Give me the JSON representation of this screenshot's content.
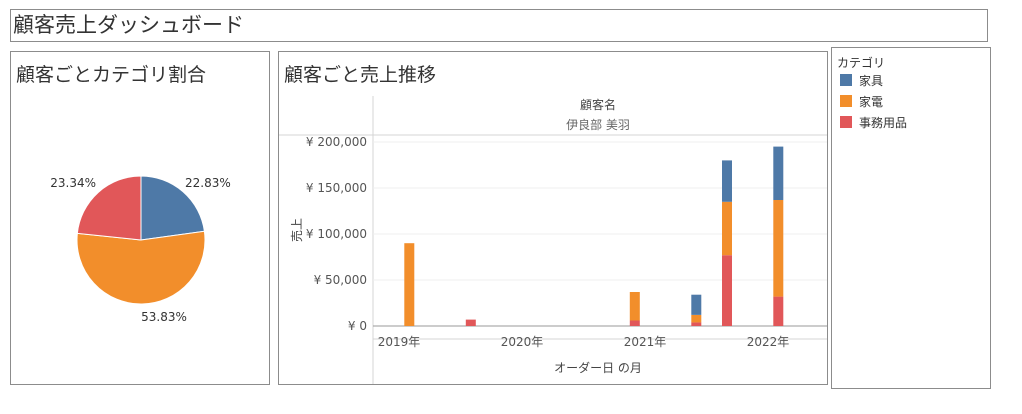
{
  "dashboard": {
    "title": "顧客売上ダッシュボード"
  },
  "pie_panel": {
    "title": "顧客ごとカテゴリ割合"
  },
  "trend_panel": {
    "title": "顧客ごと売上推移"
  },
  "legend": {
    "title": "カテゴリ",
    "items": [
      {
        "label": "家具",
        "color": "#4e79a7"
      },
      {
        "label": "家電",
        "color": "#f28e2b"
      },
      {
        "label": "事務用品",
        "color": "#e15759"
      }
    ]
  },
  "chart_data": [
    {
      "type": "pie",
      "categories": [
        "家具",
        "家電",
        "事務用品"
      ],
      "values": [
        22.83,
        53.83,
        23.34
      ],
      "labels": [
        "22.83%",
        "53.83%",
        "23.34%"
      ],
      "colors": [
        "#4e79a7",
        "#f28e2b",
        "#e15759"
      ]
    },
    {
      "type": "bar",
      "stacked": true,
      "header_title": "顧客名",
      "header_value": "伊良部 美羽",
      "xlabel": "オーダー日 の月",
      "ylabel": "売上",
      "x_tick_labels": [
        "2019年",
        "2020年",
        "2021年",
        "2022年"
      ],
      "y_tick_labels": [
        "¥ 0",
        "¥ 50,000",
        "¥ 100,000",
        "¥ 150,000",
        "¥ 200,000"
      ],
      "ylim": [
        0,
        200000
      ],
      "xlim": [
        "2019-01",
        "2022-05"
      ],
      "x": [
        "2019-02",
        "2019-08",
        "2020-12",
        "2021-06",
        "2021-09",
        "2022-02"
      ],
      "series": [
        {
          "name": "事務用品",
          "color": "#e15759",
          "values": [
            0,
            7000,
            6000,
            4000,
            77000,
            32000
          ]
        },
        {
          "name": "家電",
          "color": "#f28e2b",
          "values": [
            90000,
            0,
            31000,
            8000,
            58000,
            105000
          ]
        },
        {
          "name": "家具",
          "color": "#4e79a7",
          "values": [
            0,
            0,
            0,
            22000,
            45000,
            58000
          ]
        }
      ],
      "grid": true
    }
  ]
}
